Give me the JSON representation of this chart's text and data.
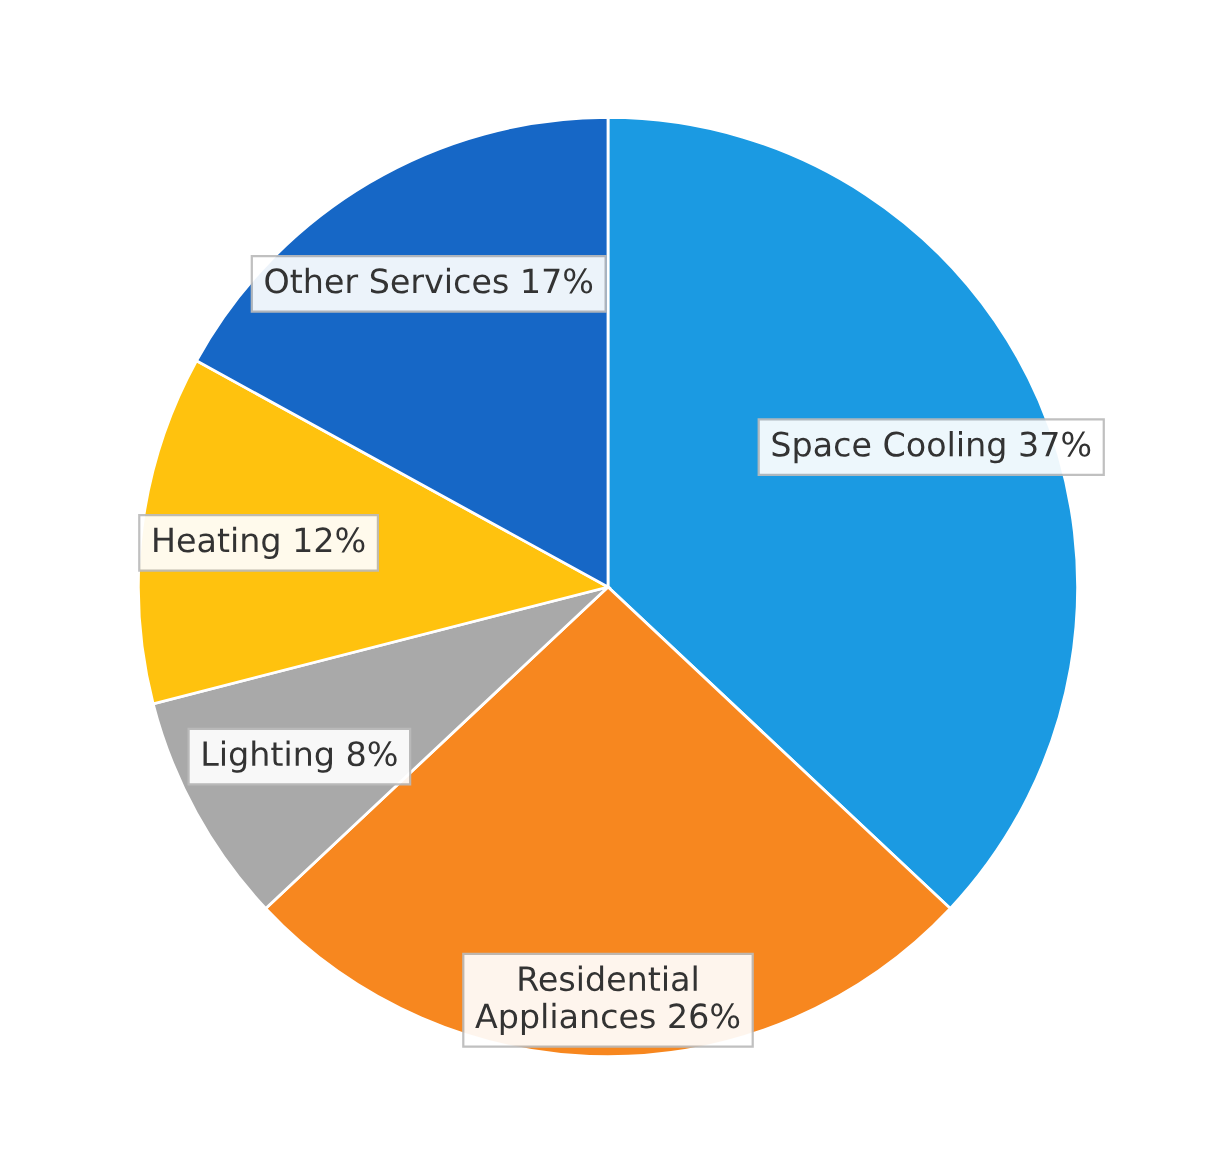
{
  "chart_data": {
    "type": "pie",
    "categories": [
      "Space Cooling",
      "Residential Appliances",
      "Lighting",
      "Heating",
      "Other Services"
    ],
    "values": [
      37,
      26,
      8,
      12,
      17
    ],
    "colors": [
      "#1b9ae2",
      "#f7871f",
      "#a9a9a9",
      "#ffc20e",
      "#1667c6"
    ],
    "value_labels": [
      "37%",
      "26%",
      "8%",
      "12%",
      "17%"
    ],
    "legend": false
  }
}
